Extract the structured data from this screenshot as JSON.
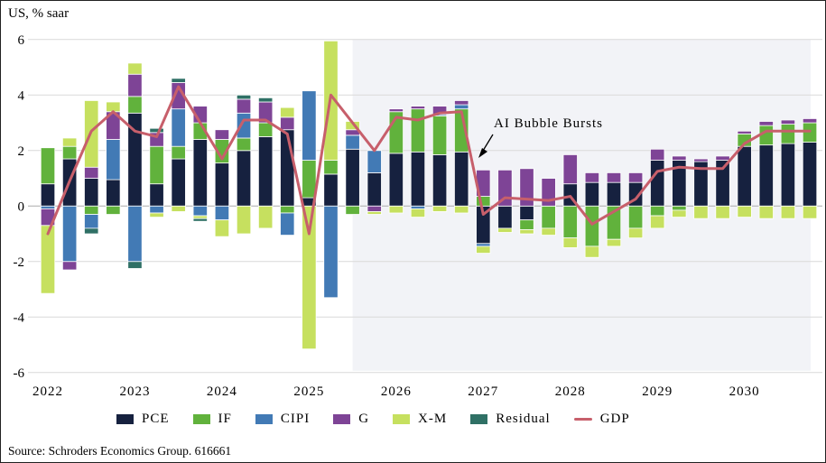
{
  "header": {
    "title": "US, % saar"
  },
  "source_note": "Source: Schroders Economics Group. 616661",
  "chart_data": {
    "type": "bar",
    "subtype": "stacked_gdp_contribution_bars_with_line_overlay",
    "title": "US, % saar",
    "xlabel": "",
    "ylabel": "",
    "ylim": [
      -6,
      6
    ],
    "yticks": [
      6,
      4,
      2,
      0,
      -2,
      -4,
      -6
    ],
    "grid": "horizontal",
    "legend_position": "bottom",
    "x_years": [
      "2022",
      "2023",
      "2024",
      "2025",
      "2026",
      "2027",
      "2028",
      "2029",
      "2030"
    ],
    "quarters_per_year": 4,
    "forecast_band": {
      "start_index": 14,
      "end_index": 35,
      "color": "#f2f3f7"
    },
    "annotation": {
      "text": "AI Bubble Bursts",
      "target_quarter": "2027Q1"
    },
    "series": [
      {
        "name": "PCE",
        "color": "#16213f",
        "values": [
          0.8,
          1.7,
          1.0,
          0.95,
          3.35,
          0.8,
          1.7,
          2.4,
          1.55,
          2.0,
          2.5,
          2.75,
          0.3,
          1.15,
          2.05,
          1.2,
          1.9,
          1.95,
          1.85,
          1.95,
          -1.35,
          -0.8,
          -0.5,
          0.0,
          0.8,
          0.85,
          0.85,
          0.85,
          1.65,
          1.65,
          1.6,
          1.65,
          2.15,
          2.2,
          2.25,
          2.3
        ]
      },
      {
        "name": "IF",
        "color": "#61b23c",
        "values": [
          1.3,
          0.45,
          -0.3,
          -0.3,
          0.6,
          1.35,
          0.45,
          0.6,
          0.85,
          0.45,
          0.5,
          -0.25,
          1.35,
          0.5,
          -0.3,
          0.0,
          1.5,
          1.55,
          1.4,
          1.55,
          0.35,
          0.0,
          -0.35,
          -0.8,
          -1.15,
          -1.45,
          -1.2,
          -0.8,
          -0.35,
          -0.15,
          0.0,
          0.0,
          0.45,
          0.7,
          0.7,
          0.7
        ]
      },
      {
        "name": "CIPI",
        "color": "#427ab5",
        "values": [
          -0.1,
          -2.0,
          -0.5,
          1.45,
          -2.0,
          -0.25,
          1.35,
          -0.35,
          -0.5,
          0.9,
          0.0,
          -0.8,
          2.5,
          -3.3,
          0.5,
          0.8,
          0.0,
          -0.1,
          0.05,
          0.15,
          -0.1,
          0.0,
          0.0,
          0.0,
          0.0,
          0.0,
          0.0,
          0.0,
          0.0,
          0.0,
          0.0,
          0.0,
          0.0,
          0.0,
          0.0,
          0.0
        ]
      },
      {
        "name": "G",
        "color": "#7e4496",
        "values": [
          -0.6,
          -0.3,
          0.4,
          1.0,
          0.8,
          0.5,
          0.95,
          0.6,
          0.35,
          0.5,
          0.75,
          0.45,
          0.0,
          0.0,
          0.2,
          -0.2,
          0.1,
          0.1,
          0.3,
          0.15,
          0.95,
          1.3,
          1.35,
          1.0,
          1.05,
          0.35,
          0.35,
          0.35,
          0.4,
          0.15,
          0.1,
          0.15,
          0.1,
          0.15,
          0.15,
          0.15
        ]
      },
      {
        "name": "X-M",
        "color": "#c6e05f",
        "values": [
          -2.45,
          0.3,
          2.4,
          0.35,
          0.4,
          -0.15,
          -0.2,
          -0.1,
          -0.6,
          -1.0,
          -0.8,
          0.35,
          -5.15,
          4.3,
          0.3,
          -0.1,
          -0.25,
          -0.3,
          -0.2,
          -0.25,
          -0.25,
          -0.15,
          -0.15,
          -0.25,
          -0.35,
          -0.4,
          -0.25,
          -0.35,
          -0.45,
          -0.25,
          -0.45,
          -0.45,
          -0.4,
          -0.45,
          -0.45,
          -0.45
        ]
      },
      {
        "name": "Residual",
        "color": "#2f7065",
        "values": [
          0.0,
          0.0,
          -0.2,
          0.0,
          -0.25,
          0.15,
          0.15,
          -0.1,
          0.0,
          0.15,
          0.15,
          0.0,
          0.0,
          0.0,
          0.0,
          0.0,
          0.0,
          0.0,
          0.0,
          0.0,
          0.0,
          0.0,
          0.0,
          0.0,
          0.0,
          0.0,
          0.0,
          0.0,
          0.0,
          0.0,
          0.0,
          0.0,
          0.0,
          0.0,
          0.0,
          0.0
        ]
      }
    ],
    "gdp_line": {
      "name": "GDP",
      "color": "#c75f6b",
      "values": [
        -1.0,
        0.9,
        2.7,
        3.4,
        2.7,
        2.5,
        4.3,
        3.0,
        1.7,
        3.1,
        3.1,
        2.6,
        -1.0,
        4.0,
        3.0,
        2.0,
        3.2,
        3.1,
        3.35,
        3.4,
        -0.3,
        0.3,
        0.25,
        0.2,
        0.35,
        -0.65,
        -0.2,
        0.25,
        1.25,
        1.4,
        1.35,
        1.35,
        2.25,
        2.7,
        2.7,
        2.7
      ]
    },
    "colors": {
      "gridline": "#d9d9d9",
      "zero_line": "#ababab",
      "annotation_arrow": "#000000",
      "text": "#000000"
    }
  }
}
